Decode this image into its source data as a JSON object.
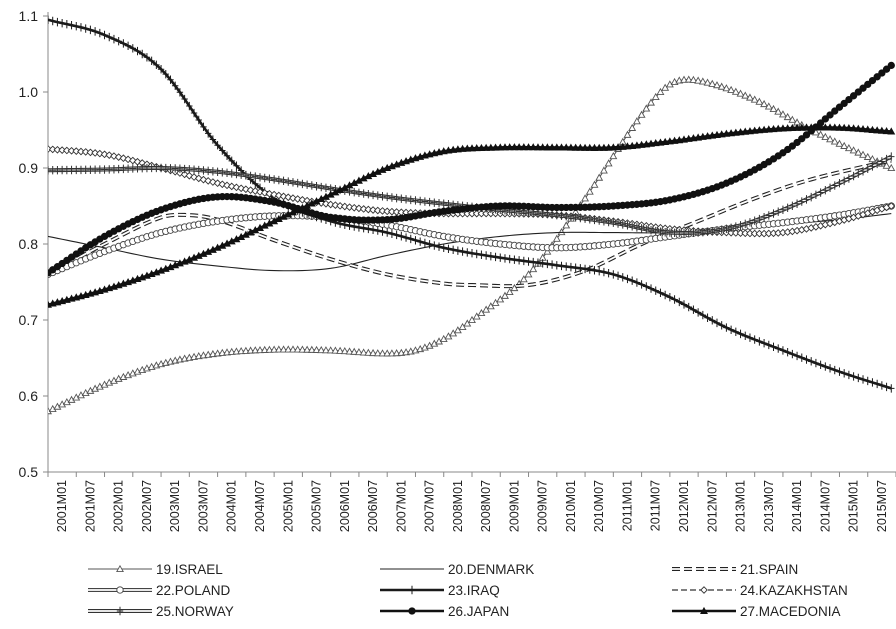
{
  "chart_data": {
    "type": "line",
    "title": "",
    "xlabel": "",
    "ylabel": "",
    "ylim": [
      0.5,
      1.1
    ],
    "yticks": [
      "0.5",
      "0.6",
      "0.7",
      "0.8",
      "0.9",
      "1.0",
      "1.1"
    ],
    "grid": false,
    "legend_position": "bottom",
    "x_start": "2001M01",
    "x_end": "2015M12",
    "x_tick_labels": [
      "2001M01",
      "2001M07",
      "2002M01",
      "2002M07",
      "2003M01",
      "2003M07",
      "2004M01",
      "2004M07",
      "2005M01",
      "2005M07",
      "2006M01",
      "2006M07",
      "2007M01",
      "2007M07",
      "2008M01",
      "2008M07",
      "2009M01",
      "2009M07",
      "2010M01",
      "2010M07",
      "2011M01",
      "2011M07",
      "2012M01",
      "2012M07",
      "2013M01",
      "2013M07",
      "2014M01",
      "2014M07",
      "2015M01",
      "2015M07"
    ],
    "series": [
      {
        "name": "19.ISRAEL",
        "marker": "triangle-open",
        "line": "thin",
        "color": "#555555",
        "points": [
          [
            "2001M01",
            0.58
          ],
          [
            "2002M01",
            0.615
          ],
          [
            "2003M01",
            0.642
          ],
          [
            "2004M01",
            0.656
          ],
          [
            "2005M01",
            0.661
          ],
          [
            "2006M01",
            0.66
          ],
          [
            "2007M01",
            0.656
          ],
          [
            "2007M07",
            0.66
          ],
          [
            "2008M01",
            0.675
          ],
          [
            "2008M07",
            0.7
          ],
          [
            "2009M07",
            0.76
          ],
          [
            "2010M07",
            0.86
          ],
          [
            "2011M07",
            0.97
          ],
          [
            "2012M01",
            1.01
          ],
          [
            "2012M07",
            1.015
          ],
          [
            "2013M07",
            0.99
          ],
          [
            "2014M07",
            0.95
          ],
          [
            "2015M12",
            0.9
          ]
        ]
      },
      {
        "name": "20.DENMARK",
        "marker": "none",
        "line": "thin",
        "color": "#222222",
        "points": [
          [
            "2001M01",
            0.81
          ],
          [
            "2002M01",
            0.795
          ],
          [
            "2003M01",
            0.78
          ],
          [
            "2004M01",
            0.771
          ],
          [
            "2005M01",
            0.765
          ],
          [
            "2006M01",
            0.768
          ],
          [
            "2007M01",
            0.785
          ],
          [
            "2008M01",
            0.8
          ],
          [
            "2009M01",
            0.81
          ],
          [
            "2010M01",
            0.815
          ],
          [
            "2011M01",
            0.815
          ],
          [
            "2012M01",
            0.815
          ],
          [
            "2013M01",
            0.82
          ],
          [
            "2014M01",
            0.826
          ],
          [
            "2015M01",
            0.832
          ],
          [
            "2015M12",
            0.84
          ]
        ]
      },
      {
        "name": "21.SPAIN",
        "marker": "none",
        "line": "double-dashed",
        "color": "#222222",
        "points": [
          [
            "2001M01",
            0.76
          ],
          [
            "2002M01",
            0.8
          ],
          [
            "2003M01",
            0.835
          ],
          [
            "2003M07",
            0.838
          ],
          [
            "2004M01",
            0.832
          ],
          [
            "2005M01",
            0.805
          ],
          [
            "2006M01",
            0.78
          ],
          [
            "2007M01",
            0.76
          ],
          [
            "2008M01",
            0.748
          ],
          [
            "2008M07",
            0.746
          ],
          [
            "2009M07",
            0.746
          ],
          [
            "2010M07",
            0.765
          ],
          [
            "2011M07",
            0.8
          ],
          [
            "2012M07",
            0.83
          ],
          [
            "2013M07",
            0.86
          ],
          [
            "2014M07",
            0.885
          ],
          [
            "2015M12",
            0.91
          ]
        ]
      },
      {
        "name": "22.POLAND",
        "marker": "circle-open",
        "line": "double",
        "color": "#444444",
        "points": [
          [
            "2001M01",
            0.76
          ],
          [
            "2002M01",
            0.79
          ],
          [
            "2003M01",
            0.815
          ],
          [
            "2004M01",
            0.83
          ],
          [
            "2005M01",
            0.837
          ],
          [
            "2006M01",
            0.835
          ],
          [
            "2007M01",
            0.825
          ],
          [
            "2008M01",
            0.81
          ],
          [
            "2009M01",
            0.8
          ],
          [
            "2010M01",
            0.795
          ],
          [
            "2011M01",
            0.8
          ],
          [
            "2012M01",
            0.81
          ],
          [
            "2013M01",
            0.82
          ],
          [
            "2014M01",
            0.828
          ],
          [
            "2015M01",
            0.838
          ],
          [
            "2015M12",
            0.85
          ]
        ]
      },
      {
        "name": "23.IRAQ",
        "marker": "cross",
        "line": "thick",
        "color": "#1a1a1a",
        "points": [
          [
            "2001M01",
            1.095
          ],
          [
            "2002M01",
            1.075
          ],
          [
            "2003M01",
            1.03
          ],
          [
            "2004M01",
            0.93
          ],
          [
            "2005M01",
            0.86
          ],
          [
            "2006M01",
            0.83
          ],
          [
            "2007M01",
            0.815
          ],
          [
            "2008M01",
            0.795
          ],
          [
            "2009M01",
            0.782
          ],
          [
            "2010M01",
            0.772
          ],
          [
            "2011M01",
            0.76
          ],
          [
            "2012M01",
            0.73
          ],
          [
            "2013M01",
            0.69
          ],
          [
            "2014M01",
            0.66
          ],
          [
            "2015M01",
            0.632
          ],
          [
            "2015M12",
            0.61
          ]
        ]
      },
      {
        "name": "24.KAZAKHSTAN",
        "marker": "diamond-open",
        "line": "dashed",
        "color": "#333333",
        "points": [
          [
            "2001M01",
            0.925
          ],
          [
            "2002M01",
            0.918
          ],
          [
            "2003M01",
            0.9
          ],
          [
            "2004M01",
            0.88
          ],
          [
            "2005M01",
            0.865
          ],
          [
            "2006M01",
            0.852
          ],
          [
            "2007M01",
            0.843
          ],
          [
            "2008M01",
            0.84
          ],
          [
            "2009M01",
            0.84
          ],
          [
            "2010M01",
            0.838
          ],
          [
            "2011M01",
            0.83
          ],
          [
            "2012M01",
            0.82
          ],
          [
            "2013M01",
            0.815
          ],
          [
            "2014M01",
            0.815
          ],
          [
            "2015M01",
            0.83
          ],
          [
            "2015M12",
            0.85
          ]
        ]
      },
      {
        "name": "25.NORWAY",
        "marker": "cross",
        "line": "double",
        "color": "#333333",
        "points": [
          [
            "2001M01",
            0.897
          ],
          [
            "2002M01",
            0.898
          ],
          [
            "2003M01",
            0.9
          ],
          [
            "2004M01",
            0.895
          ],
          [
            "2005M01",
            0.885
          ],
          [
            "2006M01",
            0.873
          ],
          [
            "2007M01",
            0.862
          ],
          [
            "2008M01",
            0.853
          ],
          [
            "2009M01",
            0.845
          ],
          [
            "2010M01",
            0.838
          ],
          [
            "2011M01",
            0.828
          ],
          [
            "2012M01",
            0.815
          ],
          [
            "2013M01",
            0.82
          ],
          [
            "2014M01",
            0.845
          ],
          [
            "2015M01",
            0.88
          ],
          [
            "2015M12",
            0.915
          ]
        ]
      },
      {
        "name": "26.JAPAN",
        "marker": "circle-filled",
        "line": "thick",
        "color": "#111111",
        "points": [
          [
            "2001M01",
            0.762
          ],
          [
            "2002M01",
            0.81
          ],
          [
            "2003M01",
            0.845
          ],
          [
            "2004M01",
            0.862
          ],
          [
            "2005M01",
            0.855
          ],
          [
            "2006M01",
            0.835
          ],
          [
            "2007M01",
            0.832
          ],
          [
            "2008M01",
            0.843
          ],
          [
            "2009M01",
            0.85
          ],
          [
            "2010M01",
            0.848
          ],
          [
            "2011M01",
            0.85
          ],
          [
            "2012M01",
            0.858
          ],
          [
            "2013M01",
            0.88
          ],
          [
            "2014M01",
            0.92
          ],
          [
            "2015M01",
            0.98
          ],
          [
            "2015M12",
            1.035
          ]
        ]
      },
      {
        "name": "27.MACEDONIA",
        "marker": "triangle-filled",
        "line": "thick",
        "color": "#111111",
        "points": [
          [
            "2001M01",
            0.72
          ],
          [
            "2002M01",
            0.74
          ],
          [
            "2003M01",
            0.765
          ],
          [
            "2004M01",
            0.795
          ],
          [
            "2005M01",
            0.83
          ],
          [
            "2006M01",
            0.865
          ],
          [
            "2007M01",
            0.9
          ],
          [
            "2008M01",
            0.922
          ],
          [
            "2009M01",
            0.927
          ],
          [
            "2010M01",
            0.927
          ],
          [
            "2011M01",
            0.927
          ],
          [
            "2012M01",
            0.935
          ],
          [
            "2013M01",
            0.945
          ],
          [
            "2014M01",
            0.952
          ],
          [
            "2015M01",
            0.953
          ],
          [
            "2015M12",
            0.948
          ]
        ]
      }
    ]
  }
}
